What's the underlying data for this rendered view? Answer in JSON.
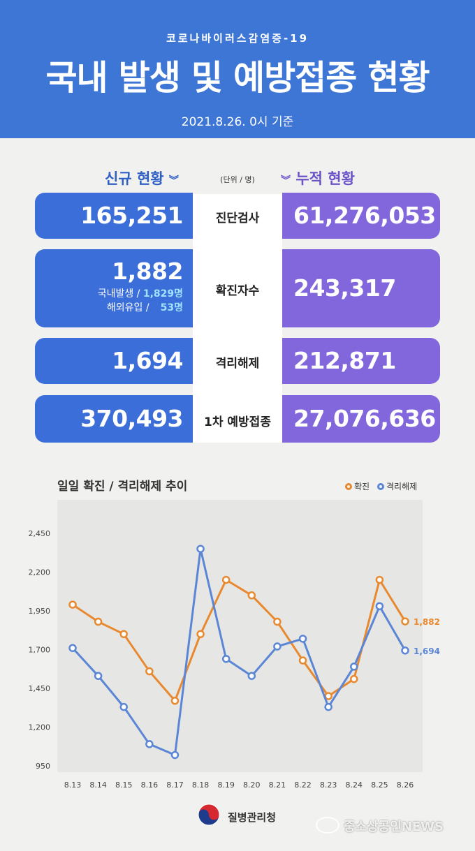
{
  "header": {
    "kicker": "코로나바이러스감염증-19",
    "title": "국내 발생 및 예방접종 현황",
    "date": "2021.8.26. 0시 기준"
  },
  "columns": {
    "new_label": "신규 현황",
    "cumulative_label": "누적 현황",
    "unit": "(단위 / 명)"
  },
  "rows": [
    {
      "label": "진단검사",
      "new": "165,251",
      "cumulative": "61,276,053"
    },
    {
      "label": "확진자수",
      "new": "1,882",
      "cumulative": "243,317",
      "breakdown": [
        {
          "label": "국내발생 /",
          "value": "1,829명"
        },
        {
          "label": "해외유입 /",
          "value": "53명"
        }
      ]
    },
    {
      "label": "격리해제",
      "new": "1,694",
      "cumulative": "212,871"
    },
    {
      "label": "1차 예방접종",
      "new": "370,493",
      "cumulative": "27,076,636"
    }
  ],
  "colors": {
    "header": "#3e76d6",
    "new_card": "#3b6ed9",
    "cumulative_card": "#8267dc",
    "confirmed": "#e8892f",
    "released": "#5b86d6"
  },
  "chart_data": {
    "type": "line",
    "title": "일일 확진 / 격리해제 추이",
    "categories": [
      "8.13",
      "8.14",
      "8.15",
      "8.16",
      "8.17",
      "8.18",
      "8.19",
      "8.20",
      "8.21",
      "8.22",
      "8.23",
      "8.24",
      "8.25",
      "8.26"
    ],
    "series": [
      {
        "name": "확진",
        "values": [
          1990,
          1880,
          1800,
          1560,
          1370,
          1800,
          2150,
          2050,
          1880,
          1630,
          1400,
          1510,
          2150,
          1882
        ],
        "end_label": "1,882"
      },
      {
        "name": "격리해제",
        "values": [
          1710,
          1530,
          1330,
          1090,
          1020,
          2350,
          1640,
          1530,
          1720,
          1770,
          1330,
          1590,
          1980,
          1694
        ],
        "end_label": "1,694"
      }
    ],
    "yticks": [
      "2,450",
      "2,200",
      "1,950",
      "1,700",
      "1,450",
      "1,200",
      "950"
    ],
    "ylim": [
      950,
      2450
    ],
    "legend": "top-right",
    "grid": false
  },
  "footer": {
    "agency": "질병관리청",
    "watermark": "중소상공인NEWS"
  }
}
